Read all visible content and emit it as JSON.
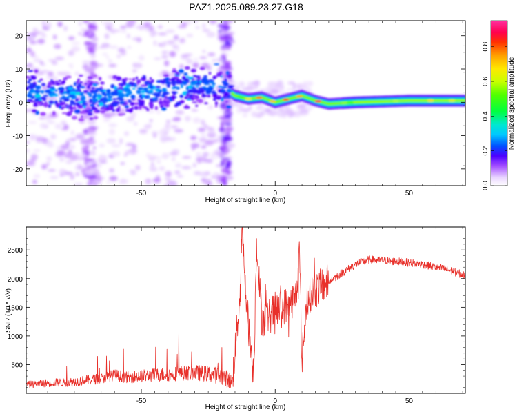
{
  "title": "PAZ1.2025.089.23.27.G18",
  "colors": {
    "snr_line": "#e8302a",
    "axis": "#000000",
    "background": "#ffffff"
  },
  "chart_data": [
    {
      "type": "heatmap",
      "xlabel": "Height of straight line (km)",
      "ylabel": "Frequency (Hz)",
      "xlim": [
        -93,
        71
      ],
      "ylim": [
        -25,
        24.5
      ],
      "xticks": [
        -50,
        0,
        50
      ],
      "yticks": [
        -20,
        -10,
        0,
        10,
        20
      ],
      "colorbar": {
        "label": "Normalized spectral amplitude",
        "range": [
          0.0,
          0.95
        ],
        "ticks": [
          0.0,
          0.2,
          0.4,
          0.6,
          0.8
        ],
        "colormap": "gist_ncar-like (white, purple, blue, cyan, green, yellow, orange, red, magenta)"
      },
      "ridge": [
        {
          "x": -90,
          "y": 3
        },
        {
          "x": -80,
          "y": 2
        },
        {
          "x": -70,
          "y": 1.5
        },
        {
          "x": -60,
          "y": 2
        },
        {
          "x": -50,
          "y": 3
        },
        {
          "x": -40,
          "y": 4
        },
        {
          "x": -30,
          "y": 5
        },
        {
          "x": -20,
          "y": 5
        },
        {
          "x": -15,
          "y": 2
        },
        {
          "x": -10,
          "y": 1
        },
        {
          "x": -5,
          "y": 1.5
        },
        {
          "x": 0,
          "y": 0
        },
        {
          "x": 5,
          "y": 1
        },
        {
          "x": 10,
          "y": 2
        },
        {
          "x": 15,
          "y": 0.5
        },
        {
          "x": 20,
          "y": -0.5
        },
        {
          "x": 30,
          "y": 0
        },
        {
          "x": 50,
          "y": 0.5
        },
        {
          "x": 71,
          "y": 0.5
        }
      ],
      "ridge_note": "Broad scattered energy (amplitude ~0.1-0.3) left of -17 km; narrow high-amplitude line (~0.5-0.95) near 0-2 Hz right of -17 km"
    },
    {
      "type": "line",
      "xlabel": "Height of straight line (km)",
      "ylabel": "SNR (10 * v/v)",
      "xlim": [
        -93,
        71
      ],
      "ylim": [
        0,
        2900
      ],
      "xticks": [
        -50,
        0,
        50
      ],
      "yticks": [
        500,
        1000,
        1500,
        2000,
        2500
      ],
      "series": [
        {
          "x": [
            -93,
            -85,
            -75,
            -65,
            -60,
            -55,
            -50,
            -45,
            -40,
            -35,
            -30,
            -25,
            -20,
            -16,
            -13,
            -12.5,
            -10,
            -8,
            -7,
            -5,
            -2,
            0,
            5,
            8,
            9,
            10,
            12,
            15,
            20,
            25,
            30,
            35,
            40,
            45,
            50,
            55,
            60,
            65,
            71
          ],
          "y": [
            150,
            180,
            200,
            260,
            320,
            280,
            300,
            320,
            330,
            350,
            360,
            340,
            300,
            200,
            1800,
            2850,
            1200,
            300,
            2600,
            1300,
            1350,
            1450,
            1550,
            1700,
            2600,
            600,
            1700,
            1800,
            1950,
            2100,
            2250,
            2330,
            2320,
            2300,
            2280,
            2250,
            2200,
            2150,
            2050
          ]
        }
      ],
      "spikes": [
        {
          "x": -63,
          "y": 650
        },
        {
          "x": -36,
          "y": 1050
        },
        {
          "x": -12.5,
          "y": 2850
        },
        {
          "x": -7,
          "y": 2700
        },
        {
          "x": -8,
          "y": 200
        },
        {
          "x": 9,
          "y": 2650
        },
        {
          "x": 10,
          "y": 600
        }
      ]
    }
  ]
}
